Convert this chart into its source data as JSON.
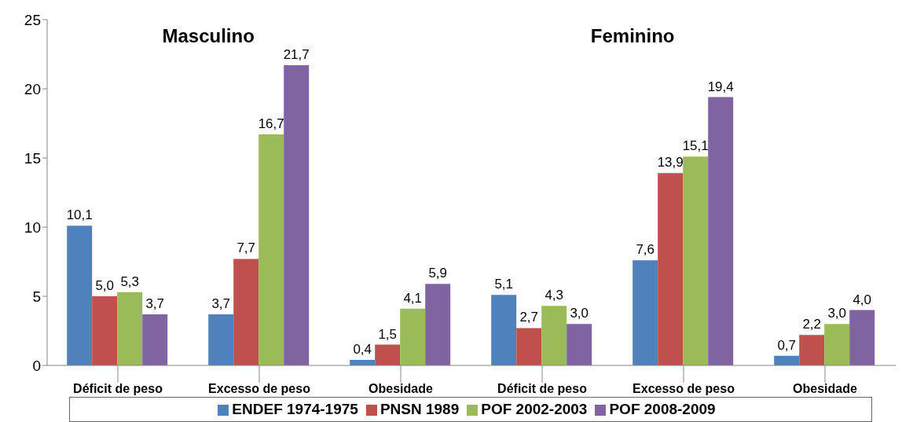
{
  "chart_data": {
    "type": "bar",
    "categories": [
      "Déficit de peso",
      "Excesso de peso",
      "Obesidade",
      "Déficit de peso",
      "Excesso de peso",
      "Obesidade"
    ],
    "series": [
      {
        "name": "ENDEF 1974-1975",
        "color": "#4f81bd",
        "values": [
          10.1,
          3.7,
          0.4,
          5.1,
          7.6,
          0.7
        ],
        "value_labels": [
          "10,1",
          "3,7",
          "0,4",
          "5,1",
          "7,6",
          "0,7"
        ]
      },
      {
        "name": "PNSN 1989",
        "color": "#c0504d",
        "values": [
          5.0,
          7.7,
          1.5,
          2.7,
          13.9,
          2.2
        ],
        "value_labels": [
          "5,0",
          "7,7",
          "1,5",
          "2,7",
          "13,9",
          "2,2"
        ]
      },
      {
        "name": "POF 2002-2003",
        "color": "#9bbb59",
        "values": [
          5.3,
          16.7,
          4.1,
          4.3,
          15.1,
          3.0
        ],
        "value_labels": [
          "5,3",
          "16,7",
          "4,1",
          "4,3",
          "15,1",
          "3,0"
        ]
      },
      {
        "name": "POF 2008-2009",
        "color": "#8064a2",
        "values": [
          3.7,
          21.7,
          5.9,
          3.0,
          19.4,
          4.0
        ],
        "value_labels": [
          "3,7",
          "21,7",
          "5,9",
          "3,0",
          "19,4",
          "4,0"
        ]
      }
    ],
    "annotations": [
      "Masculino",
      "Feminino"
    ],
    "ylim": [
      0,
      25
    ],
    "yticks": [
      0,
      5,
      10,
      15,
      20,
      25
    ],
    "grid": false,
    "legend": "bottom"
  }
}
